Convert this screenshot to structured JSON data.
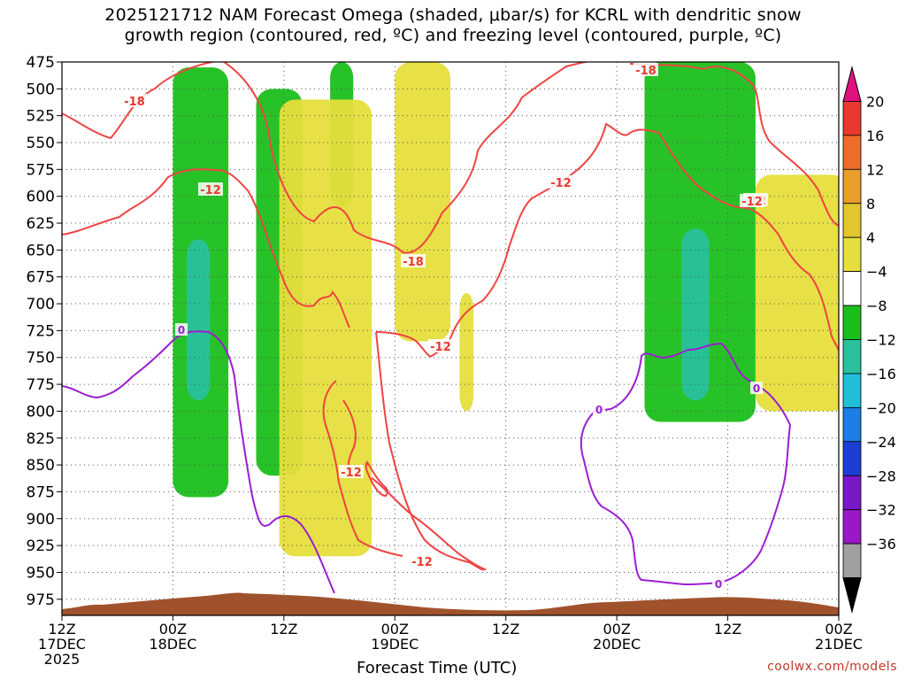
{
  "chart_data": {
    "type": "heatmap",
    "title_line1": "2025121712 NAM Forecast Omega (shaded, μbar/s) for KCRL with dendritic snow",
    "title_line2": "growth region (contoured, red, ºC) and freezing level (contoured, purple, ºC)",
    "xlabel": "Forecast Time (UTC)",
    "credit": "coolwx.com/models",
    "y_axis": {
      "label_values": [
        475,
        500,
        525,
        550,
        575,
        600,
        625,
        650,
        675,
        700,
        725,
        750,
        775,
        800,
        825,
        850,
        875,
        900,
        925,
        950,
        975
      ],
      "range": [
        475,
        990
      ],
      "inverted": true,
      "units": "hPa"
    },
    "x_axis": {
      "range_hours": [
        0,
        84
      ],
      "ticks": [
        {
          "hour": 0,
          "line1": "12Z",
          "line2": "17DEC",
          "line3": "2025"
        },
        {
          "hour": 12,
          "line1": "00Z",
          "line2": "18DEC",
          "line3": ""
        },
        {
          "hour": 24,
          "line1": "12Z",
          "line2": "",
          "line3": ""
        },
        {
          "hour": 36,
          "line1": "00Z",
          "line2": "19DEC",
          "line3": ""
        },
        {
          "hour": 48,
          "line1": "12Z",
          "line2": "",
          "line3": ""
        },
        {
          "hour": 60,
          "line1": "00Z",
          "line2": "20DEC",
          "line3": ""
        },
        {
          "hour": 72,
          "line1": "12Z",
          "line2": "",
          "line3": ""
        },
        {
          "hour": 84,
          "line1": "00Z",
          "line2": "21DEC",
          "line3": ""
        }
      ]
    },
    "grid": true,
    "colorbar": {
      "labels": [
        "20",
        "16",
        "12",
        "8",
        "4",
        "−4",
        "−8",
        "−12",
        "−16",
        "−20",
        "−24",
        "−28",
        "−32",
        "−36"
      ],
      "colors": [
        "#e0127f",
        "#e8382f",
        "#ee6b2a",
        "#e99e2c",
        "#e3c62f",
        "#e6de3c",
        "#ffffff",
        "#1bbf1b",
        "#28c19c",
        "#20bfd8",
        "#1c7ee6",
        "#1b3fd6",
        "#7a18c9",
        "#9a18c6",
        "#a0a0a0",
        "#000000"
      ]
    },
    "omega_regions": [
      {
        "sign": "upward",
        "level": -4,
        "color": "#1bbf1b",
        "hour_range": [
          12,
          18
        ],
        "pressure_range": [
          480,
          880
        ]
      },
      {
        "sign": "upward",
        "level": -8,
        "color": "#28c19c",
        "hour_range": [
          13.5,
          16
        ],
        "pressure_range": [
          640,
          790
        ]
      },
      {
        "sign": "upward",
        "level": -4,
        "color": "#1bbf1b",
        "hour_range": [
          21,
          26
        ],
        "pressure_range": [
          500,
          860
        ]
      },
      {
        "sign": "upward",
        "level": -4,
        "color": "#1bbf1b",
        "hour_range": [
          29,
          31.5
        ],
        "pressure_range": [
          475,
          610
        ]
      },
      {
        "sign": "downward",
        "level": 4,
        "color": "#e6de3c",
        "hour_range": [
          23.5,
          33.5
        ],
        "pressure_range": [
          510,
          935
        ]
      },
      {
        "sign": "downward",
        "level": 4,
        "color": "#e6de3c",
        "hour_range": [
          36,
          42
        ],
        "pressure_range": [
          475,
          735
        ]
      },
      {
        "sign": "downward",
        "level": 4,
        "color": "#e6de3c",
        "hour_range": [
          43,
          44.5
        ],
        "pressure_range": [
          690,
          800
        ]
      },
      {
        "sign": "upward",
        "level": -4,
        "color": "#1bbf1b",
        "hour_range": [
          63,
          75
        ],
        "pressure_range": [
          475,
          810
        ]
      },
      {
        "sign": "upward",
        "level": -8,
        "color": "#28c19c",
        "hour_range": [
          67,
          70
        ],
        "pressure_range": [
          630,
          790
        ]
      },
      {
        "sign": "downward",
        "level": 4,
        "color": "#e6de3c",
        "hour_range": [
          75,
          85
        ],
        "pressure_range": [
          580,
          800
        ]
      }
    ],
    "red_contour_labels": [
      "-18",
      "-12",
      "-12",
      "-18",
      "-12",
      "-12",
      "-12",
      "-12",
      "-18",
      "-12"
    ],
    "purple_contour_labels": [
      "0",
      "0",
      "0",
      "0"
    ],
    "terrain_color": "#a0522d"
  }
}
